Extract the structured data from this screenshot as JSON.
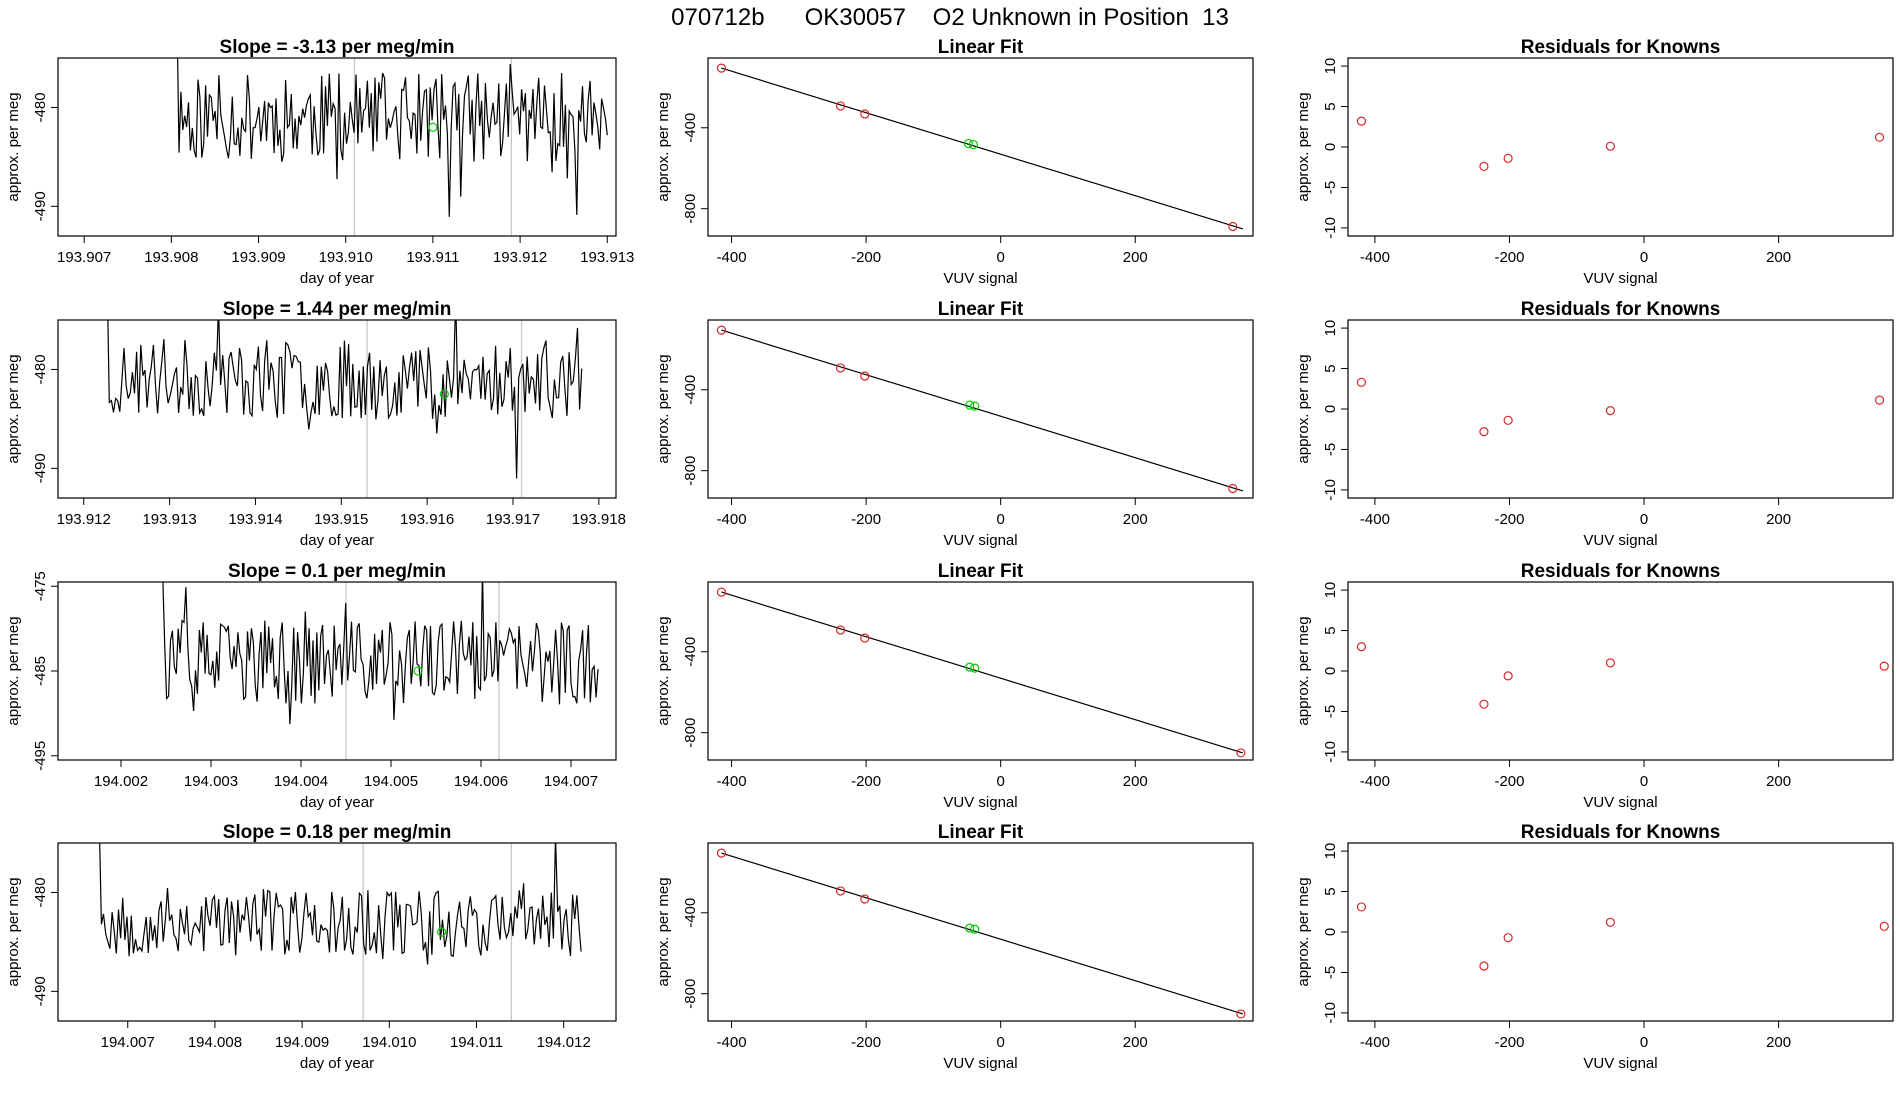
{
  "title": "070712b      OK30057    O2 Unknown in Position  13",
  "colors": {
    "line": "#000000",
    "known_point": "#d62728",
    "unknown_point": "#00cc00",
    "vline": "#c8c8c8"
  },
  "chart_data": [
    {
      "type": "line",
      "title": "Slope =  -3.13  per meg/min",
      "xlabel": "day of year",
      "ylabel": "approx. per meg",
      "xlim": [
        193.9067,
        193.9131
      ],
      "ylim": [
        -493,
        -475
      ],
      "xticks": [
        "193.907",
        "193.908",
        "193.909",
        "193.910",
        "193.911",
        "193.912",
        "193.913"
      ],
      "xtick_values": [
        193.907,
        193.908,
        193.909,
        193.91,
        193.911,
        193.912,
        193.913
      ],
      "yticks": [
        "-480",
        "-490"
      ],
      "ytick_values": [
        -480,
        -490
      ],
      "x_start": 193.908,
      "x_end": 193.913,
      "y_base": -481,
      "amp": 4.5,
      "seed": 11,
      "vlines": [
        193.9101,
        193.9119
      ],
      "marker": {
        "x": 193.911,
        "y": -482
      }
    },
    {
      "type": "scatter",
      "title": "Linear Fit",
      "xlabel": "VUV signal",
      "ylabel": "approx. per meg",
      "xlim": [
        -435,
        375
      ],
      "ylim": [
        -935,
        -55
      ],
      "xticks": [
        "-400",
        "-200",
        "0",
        "200"
      ],
      "xtick_values": [
        -400,
        -200,
        0,
        200
      ],
      "yticks": [
        "-400",
        "-800"
      ],
      "ytick_values": [
        -400,
        -800
      ],
      "fit_line": [
        [
          -415,
          -105
        ],
        [
          360,
          -900
        ]
      ],
      "known_points": [
        [
          -415,
          -105
        ],
        [
          -238,
          -292
        ],
        [
          -202,
          -332
        ],
        [
          345,
          -888
        ]
      ],
      "unknown_points": [
        [
          -48,
          -478
        ]
      ]
    },
    {
      "type": "scatter",
      "title": "Residuals for Knowns",
      "xlabel": "VUV signal",
      "ylabel": "approx. per meg",
      "xlim": [
        -440,
        370
      ],
      "ylim": [
        -11,
        11
      ],
      "xticks": [
        "-400",
        "-200",
        "0",
        "200"
      ],
      "xtick_values": [
        -400,
        -200,
        0,
        200
      ],
      "yticks": [
        "-10",
        "-5",
        "0",
        "5",
        "10"
      ],
      "ytick_values": [
        -10,
        -5,
        0,
        5,
        10
      ],
      "known_points": [
        [
          -420,
          3.2
        ],
        [
          -238,
          -2.4
        ],
        [
          -202,
          -1.4
        ],
        [
          -50,
          0.1
        ],
        [
          350,
          1.2
        ]
      ]
    },
    {
      "type": "line",
      "title": "Slope =  1.44  per meg/min",
      "xlabel": "day of year",
      "ylabel": "approx. per meg",
      "xlim": [
        193.9117,
        193.9182
      ],
      "ylim": [
        -493,
        -475
      ],
      "xticks": [
        "193.912",
        "193.913",
        "193.914",
        "193.915",
        "193.916",
        "193.917",
        "193.918"
      ],
      "xtick_values": [
        193.912,
        193.913,
        193.914,
        193.915,
        193.916,
        193.917,
        193.918
      ],
      "yticks": [
        "-480",
        "-490"
      ],
      "ytick_values": [
        -480,
        -490
      ],
      "x_start": 193.9122,
      "x_end": 193.9178,
      "y_base": -481,
      "amp": 4.0,
      "seed": 23,
      "vlines": [
        193.9153,
        193.9171
      ],
      "marker": {
        "x": 193.9162,
        "y": -482.5
      }
    },
    {
      "type": "scatter",
      "title": "Linear Fit",
      "xlabel": "VUV signal",
      "ylabel": "approx. per meg",
      "xlim": [
        -435,
        375
      ],
      "ylim": [
        -935,
        -55
      ],
      "xticks": [
        "-400",
        "-200",
        "0",
        "200"
      ],
      "xtick_values": [
        -400,
        -200,
        0,
        200
      ],
      "yticks": [
        "-400",
        "-800"
      ],
      "ytick_values": [
        -400,
        -800
      ],
      "fit_line": [
        [
          -415,
          -105
        ],
        [
          360,
          -900
        ]
      ],
      "known_points": [
        [
          -415,
          -105
        ],
        [
          -238,
          -292
        ],
        [
          -202,
          -332
        ],
        [
          345,
          -888
        ]
      ],
      "unknown_points": [
        [
          -46,
          -476
        ]
      ]
    },
    {
      "type": "scatter",
      "title": "Residuals for Knowns",
      "xlabel": "VUV signal",
      "ylabel": "approx. per meg",
      "xlim": [
        -440,
        370
      ],
      "ylim": [
        -11,
        11
      ],
      "xticks": [
        "-400",
        "-200",
        "0",
        "200"
      ],
      "xtick_values": [
        -400,
        -200,
        0,
        200
      ],
      "yticks": [
        "-10",
        "-5",
        "0",
        "5",
        "10"
      ],
      "ytick_values": [
        -10,
        -5,
        0,
        5,
        10
      ],
      "known_points": [
        [
          -420,
          3.3
        ],
        [
          -238,
          -2.8
        ],
        [
          -202,
          -1.4
        ],
        [
          -50,
          -0.2
        ],
        [
          350,
          1.1
        ]
      ]
    },
    {
      "type": "line",
      "title": "Slope =  0.1  per meg/min",
      "xlabel": "day of year",
      "ylabel": "approx. per meg",
      "xlim": [
        194.0013,
        194.0075
      ],
      "ylim": [
        -495.5,
        -474.5
      ],
      "xticks": [
        "194.002",
        "194.003",
        "194.004",
        "194.005",
        "194.006",
        "194.007"
      ],
      "xtick_values": [
        194.002,
        194.003,
        194.004,
        194.005,
        194.006,
        194.007
      ],
      "yticks": [
        "-475",
        "-485",
        "-495"
      ],
      "ytick_values": [
        -475,
        -485,
        -495
      ],
      "x_start": 194.0024,
      "x_end": 194.0073,
      "y_base": -484,
      "amp": 5.0,
      "seed": 37,
      "vlines": [
        194.0045,
        194.0062
      ],
      "marker": {
        "x": 194.0053,
        "y": -485
      }
    },
    {
      "type": "scatter",
      "title": "Linear Fit",
      "xlabel": "VUV signal",
      "ylabel": "approx. per meg",
      "xlim": [
        -435,
        375
      ],
      "ylim": [
        -935,
        -55
      ],
      "xticks": [
        "-400",
        "-200",
        "0",
        "200"
      ],
      "xtick_values": [
        -400,
        -200,
        0,
        200
      ],
      "yticks": [
        "-400",
        "-800"
      ],
      "ytick_values": [
        -400,
        -800
      ],
      "fit_line": [
        [
          -415,
          -105
        ],
        [
          360,
          -900
        ]
      ],
      "known_points": [
        [
          -415,
          -105
        ],
        [
          -238,
          -292
        ],
        [
          -202,
          -332
        ],
        [
          357,
          -900
        ]
      ],
      "unknown_points": [
        [
          -46,
          -476
        ]
      ]
    },
    {
      "type": "scatter",
      "title": "Residuals for Knowns",
      "xlabel": "VUV signal",
      "ylabel": "approx. per meg",
      "xlim": [
        -440,
        370
      ],
      "ylim": [
        -11,
        11
      ],
      "xticks": [
        "-400",
        "-200",
        "0",
        "200"
      ],
      "xtick_values": [
        -400,
        -200,
        0,
        200
      ],
      "yticks": [
        "-10",
        "-5",
        "0",
        "5",
        "10"
      ],
      "ytick_values": [
        -10,
        -5,
        0,
        5,
        10
      ],
      "known_points": [
        [
          -420,
          3.0
        ],
        [
          -238,
          -4.1
        ],
        [
          -202,
          -0.6
        ],
        [
          -50,
          1.0
        ],
        [
          357,
          0.6
        ]
      ]
    },
    {
      "type": "line",
      "title": "Slope =  0.18  per meg/min",
      "xlabel": "day of year",
      "ylabel": "approx. per meg",
      "xlim": [
        194.0062,
        194.0126
      ],
      "ylim": [
        -493,
        -475
      ],
      "xticks": [
        "194.007",
        "194.008",
        "194.009",
        "194.010",
        "194.011",
        "194.012"
      ],
      "xtick_values": [
        194.007,
        194.008,
        194.009,
        194.01,
        194.011,
        194.012
      ],
      "yticks": [
        "-480",
        "-490"
      ],
      "ytick_values": [
        -480,
        -490
      ],
      "x_start": 194.0066,
      "x_end": 194.0122,
      "y_base": -483,
      "amp": 3.5,
      "seed": 53,
      "vlines": [
        194.0097,
        194.0114
      ],
      "marker": {
        "x": 194.0106,
        "y": -484
      }
    },
    {
      "type": "scatter",
      "title": "Linear Fit",
      "xlabel": "VUV signal",
      "ylabel": "approx. per meg",
      "xlim": [
        -435,
        375
      ],
      "ylim": [
        -935,
        -55
      ],
      "xticks": [
        "-400",
        "-200",
        "0",
        "200"
      ],
      "xtick_values": [
        -400,
        -200,
        0,
        200
      ],
      "yticks": [
        "-400",
        "-800"
      ],
      "ytick_values": [
        -400,
        -800
      ],
      "fit_line": [
        [
          -415,
          -105
        ],
        [
          360,
          -900
        ]
      ],
      "known_points": [
        [
          -415,
          -105
        ],
        [
          -238,
          -292
        ],
        [
          -202,
          -332
        ],
        [
          357,
          -900
        ]
      ],
      "unknown_points": [
        [
          -46,
          -476
        ]
      ]
    },
    {
      "type": "scatter",
      "title": "Residuals for Knowns",
      "xlabel": "VUV signal",
      "ylabel": "approx. per meg",
      "xlim": [
        -440,
        370
      ],
      "ylim": [
        -11,
        11
      ],
      "xticks": [
        "-400",
        "-200",
        "0",
        "200"
      ],
      "xtick_values": [
        -400,
        -200,
        0,
        200
      ],
      "yticks": [
        "-10",
        "-5",
        "0",
        "5",
        "10"
      ],
      "ytick_values": [
        -10,
        -5,
        0,
        5,
        10
      ],
      "known_points": [
        [
          -420,
          3.1
        ],
        [
          -238,
          -4.2
        ],
        [
          -202,
          -0.7
        ],
        [
          -50,
          1.2
        ],
        [
          357,
          0.7
        ]
      ]
    }
  ]
}
